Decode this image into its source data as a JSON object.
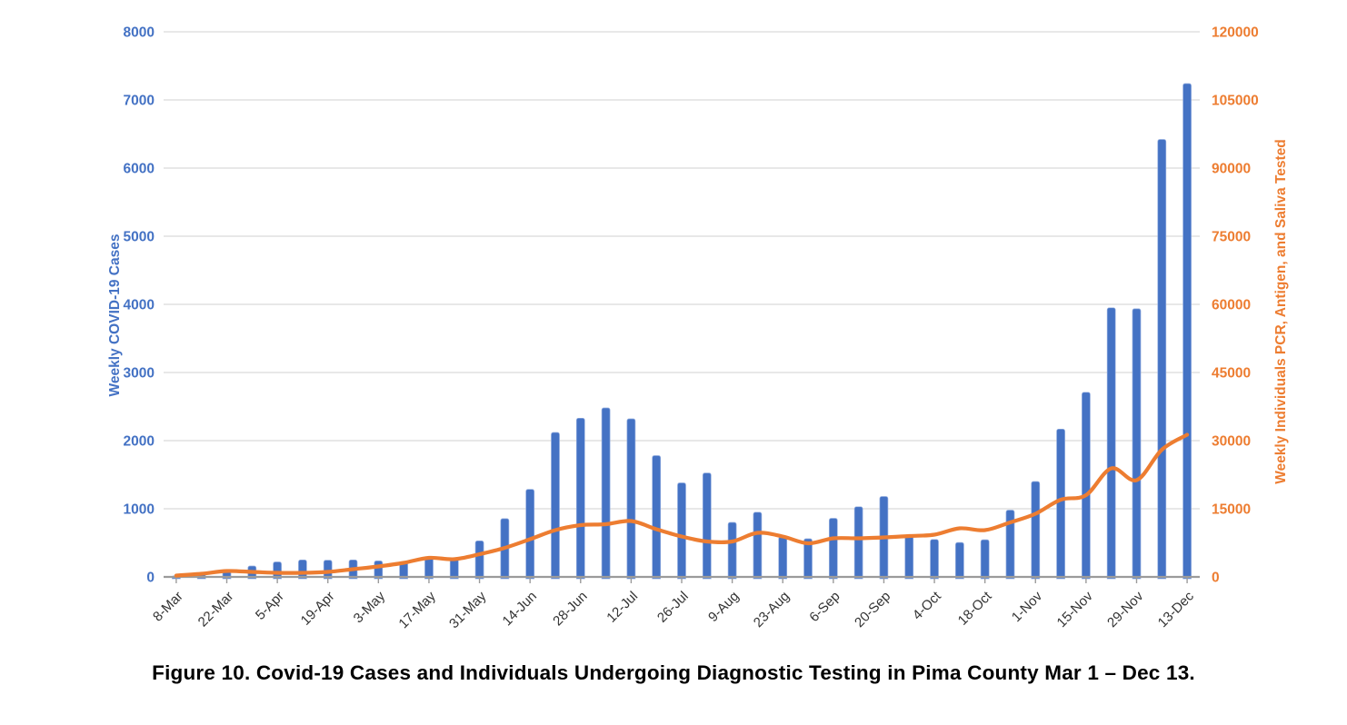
{
  "figure": {
    "caption": "Figure 10. Covid-19 Cases and Individuals Undergoing Diagnostic Testing in Pima County Mar 1 – Dec 13."
  },
  "chart_data": {
    "type": "combo-bar-line",
    "categories": [
      "8-Mar",
      "15-Mar",
      "22-Mar",
      "29-Mar",
      "5-Apr",
      "12-Apr",
      "19-Apr",
      "26-Apr",
      "3-May",
      "10-May",
      "17-May",
      "24-May",
      "31-May",
      "7-Jun",
      "14-Jun",
      "21-Jun",
      "28-Jun",
      "5-Jul",
      "12-Jul",
      "19-Jul",
      "26-Jul",
      "2-Aug",
      "9-Aug",
      "16-Aug",
      "23-Aug",
      "30-Aug",
      "6-Sep",
      "13-Sep",
      "20-Sep",
      "27-Sep",
      "4-Oct",
      "11-Oct",
      "18-Oct",
      "25-Oct",
      "1-Nov",
      "8-Nov",
      "15-Nov",
      "22-Nov",
      "29-Nov",
      "6-Dec",
      "13-Dec"
    ],
    "x_tick_label_interval": 2,
    "x_tick_labels_shown": [
      "8-Mar",
      "22-Mar",
      "5-Apr",
      "19-Apr",
      "3-May",
      "17-May",
      "31-May",
      "14-Jun",
      "28-Jun",
      "12-Jul",
      "26-Jul",
      "9-Aug",
      "23-Aug",
      "6-Sep",
      "20-Sep",
      "4-Oct",
      "18-Oct",
      "1-Nov",
      "15-Nov",
      "29-Nov",
      "13-Dec"
    ],
    "series": [
      {
        "name": "Weekly COVID-19 Cases",
        "type": "bar",
        "axis": "left",
        "color": "#4472C4",
        "values": [
          15,
          40,
          85,
          160,
          220,
          250,
          245,
          250,
          235,
          215,
          290,
          270,
          530,
          855,
          1285,
          2120,
          2330,
          2480,
          2320,
          1780,
          1380,
          1525,
          800,
          950,
          590,
          560,
          860,
          1030,
          1180,
          620,
          550,
          505,
          545,
          980,
          1400,
          2170,
          2710,
          3950,
          3935,
          6420,
          7240
        ]
      },
      {
        "name": "Weekly Individuals PCR, Antigen, and Saliva Tested",
        "type": "line",
        "axis": "right",
        "color": "#ED7D31",
        "values": [
          300,
          700,
          1300,
          1100,
          900,
          900,
          1100,
          1700,
          2300,
          3100,
          4200,
          3900,
          5000,
          6400,
          8300,
          10300,
          11400,
          11600,
          12300,
          10500,
          8900,
          7800,
          7800,
          9700,
          8900,
          7400,
          8500,
          8500,
          8700,
          9000,
          9300,
          10700,
          10300,
          12000,
          13900,
          17000,
          18000,
          23900,
          21300,
          28000,
          31300
        ]
      }
    ],
    "left_axis": {
      "label": "Weekly COVID-19 Cases",
      "min": 0,
      "max": 8000,
      "step": 1000,
      "color": "#4472C4"
    },
    "right_axis": {
      "label": "Weekly Individuals PCR, Antigen, and Saliva Tested",
      "min": 0,
      "max": 120000,
      "step": 15000,
      "color": "#ED7D31"
    },
    "grid": true,
    "gridline_color": "#D9D9D9",
    "axis_line_color": "#9B9B9B",
    "x_tick_label_color": "#333333",
    "background": "#FFFFFF"
  }
}
